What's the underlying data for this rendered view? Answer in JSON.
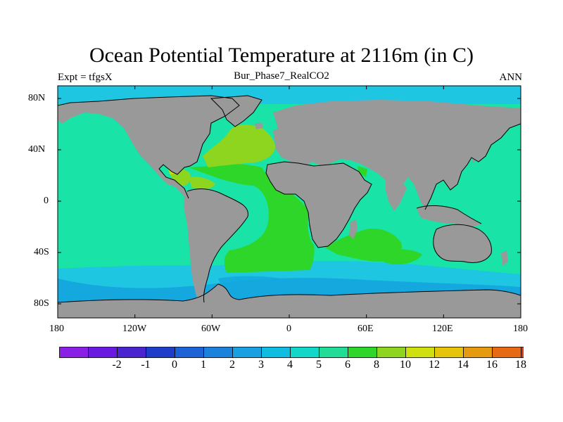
{
  "title": "Ocean Potential Temperature at 2116m (in C)",
  "left_label": "Expt = tfgsX",
  "center_label": "Bur_Phase7_RealCO2",
  "right_label": "ANN",
  "lat_ticks": [
    "80N",
    "40N",
    "0",
    "40S",
    "80S"
  ],
  "lon_ticks": [
    "180",
    "120W",
    "60W",
    "0",
    "60E",
    "120E",
    "180"
  ],
  "colorbar": {
    "labels": [
      "-2",
      "-1",
      "0",
      "1",
      "2",
      "3",
      "4",
      "5",
      "6",
      "8",
      "10",
      "12",
      "14",
      "16",
      "18"
    ],
    "colors": [
      "#8a1fe6",
      "#6a1ae0",
      "#4a25cf",
      "#1e3dc8",
      "#1e62d8",
      "#1a82dc",
      "#1aa0e0",
      "#10bde0",
      "#12d6c8",
      "#20dc96",
      "#2fd62a",
      "#8ed51f",
      "#cfdf10",
      "#e6c40c",
      "#e69a10",
      "#e66a14",
      "#e03a14",
      "#e6101a"
    ]
  },
  "colors": {
    "land": "#999999",
    "ocean_main": "#19e3a6",
    "ocean_cool": "#1ec6e2",
    "ocean_cold": "#14a8df",
    "ocean_warm": "#2fd62a",
    "ocean_warmer": "#8ed51f",
    "ocean_warmest": "#c7e018"
  }
}
